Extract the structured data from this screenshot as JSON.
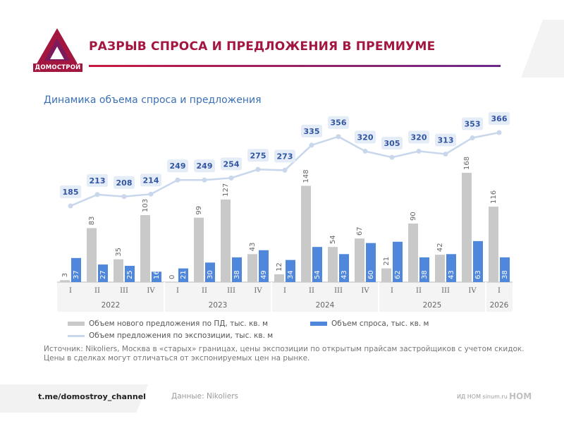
{
  "header": {
    "logo_text": "ДОМОСТРОЙ",
    "title": "РАЗРЫВ СПРОСА И ПРЕДЛОЖЕНИЯ В ПРЕМИУМЕ"
  },
  "colors": {
    "brand": "#a3163f",
    "accent_purple": "#6b2a8c",
    "supply_bar": "#c9c9c9",
    "demand_bar": "#4f87dc",
    "exposure_line": "#c9d7ec",
    "exposure_label": "#3255a4"
  },
  "chart_data": {
    "type": "bar",
    "title": "Динамика объема спроса и предложения",
    "categories": [
      "I",
      "II",
      "III",
      "IV",
      "I",
      "II",
      "III",
      "IV",
      "I",
      "II",
      "III",
      "IV",
      "I",
      "II",
      "III",
      "IV",
      "I"
    ],
    "years": [
      {
        "label": "2022",
        "count": 4
      },
      {
        "label": "2023",
        "count": 4
      },
      {
        "label": "2024",
        "count": 4
      },
      {
        "label": "2025",
        "count": 4
      },
      {
        "label": "2026",
        "count": 1
      }
    ],
    "series": [
      {
        "name": "Объем нового предложения по ПД, тыс. кв. м",
        "type": "bar",
        "values": [
          3,
          83,
          35,
          103,
          0,
          99,
          127,
          43,
          12,
          148,
          54,
          67,
          21,
          90,
          42,
          168,
          116
        ]
      },
      {
        "name": "Объем спроса, тыс. кв. м",
        "type": "bar",
        "values": [
          37,
          27,
          25,
          16,
          21,
          30,
          38,
          49,
          34,
          54,
          43,
          60,
          62,
          38,
          43,
          63,
          38
        ]
      },
      {
        "name": "Объем предложения по экспозиции, тыс. кв. м",
        "type": "line",
        "values": [
          185,
          213,
          208,
          214,
          249,
          249,
          254,
          275,
          273,
          335,
          356,
          320,
          305,
          320,
          313,
          353,
          366
        ]
      }
    ],
    "legend_position": "bottom",
    "grid": false
  },
  "source_text": "Источник: Nikoliers, Москва в «старых» границах, цены экспозиции по открытым прайсам застройщиков с учетом скидок. Цены в сделках могут отличаться от экспонируемых цен на рынке.",
  "footer": {
    "channel": "t.me/domostroy_channel",
    "data_source": "Данные: Nikoliers",
    "right_text": "ИД НОМ sinum.ru",
    "brand": "НОМ"
  }
}
